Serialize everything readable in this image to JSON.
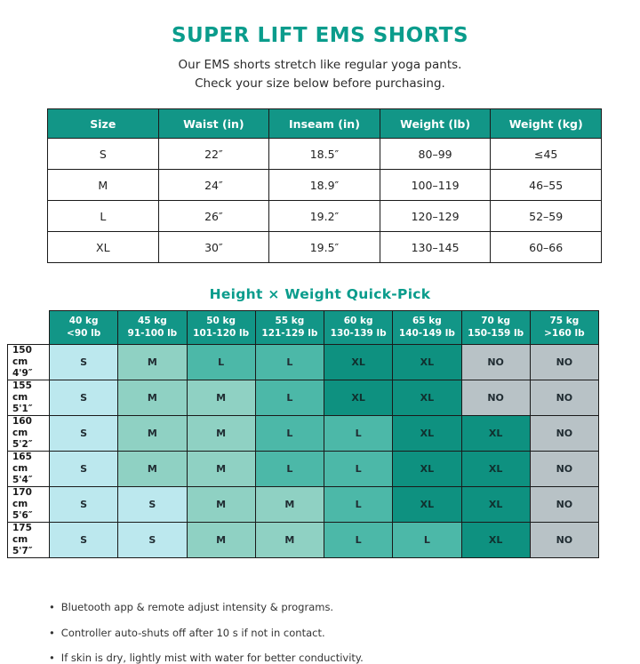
{
  "title": "SUPER LIFT EMS SHORTS",
  "subtitle": {
    "line1": "Our EMS shorts stretch like regular yoga pants.",
    "line2": "Check your size below before purchasing."
  },
  "size_table": {
    "headers": [
      "Size",
      "Waist (in)",
      "Inseam (in)",
      "Weight (lb)",
      "Weight (kg)"
    ],
    "rows": [
      [
        "S",
        "22″",
        "18.5″",
        "80–99",
        "≤45"
      ],
      [
        "M",
        "24″",
        "18.9″",
        "100–119",
        "46–55"
      ],
      [
        "L",
        "26″",
        "19.2″",
        "120–129",
        "52–59"
      ],
      [
        "XL",
        "30″",
        "19.5″",
        "130–145",
        "60–66"
      ]
    ]
  },
  "quickpick": {
    "heading": "Height × Weight Quick-Pick",
    "col_headers": [
      {
        "kg": "40 kg",
        "lb": "<90 lb"
      },
      {
        "kg": "45 kg",
        "lb": "91-100 lb"
      },
      {
        "kg": "50 kg",
        "lb": "101-120 lb"
      },
      {
        "kg": "55 kg",
        "lb": "121-129 lb"
      },
      {
        "kg": "60 kg",
        "lb": "130-139 lb"
      },
      {
        "kg": "65 kg",
        "lb": "140-149 lb"
      },
      {
        "kg": "70 kg",
        "lb": "150-159 lb"
      },
      {
        "kg": "75 kg",
        "lb": ">160 lb"
      }
    ],
    "row_headers": [
      {
        "cm": "150 cm",
        "ft": "4'9″"
      },
      {
        "cm": "155 cm",
        "ft": "5'1″"
      },
      {
        "cm": "160 cm",
        "ft": "5'2″"
      },
      {
        "cm": "165 cm",
        "ft": "5'4″"
      },
      {
        "cm": "170 cm",
        "ft": "5'6″"
      },
      {
        "cm": "175 cm",
        "ft": "5'7″"
      }
    ],
    "cells": [
      [
        "S",
        "M",
        "L",
        "L",
        "XL",
        "XL",
        "NO",
        "NO"
      ],
      [
        "S",
        "M",
        "M",
        "L",
        "XL",
        "XL",
        "NO",
        "NO"
      ],
      [
        "S",
        "M",
        "M",
        "L",
        "L",
        "XL",
        "XL",
        "NO"
      ],
      [
        "S",
        "M",
        "M",
        "L",
        "L",
        "XL",
        "XL",
        "NO"
      ],
      [
        "S",
        "S",
        "M",
        "M",
        "L",
        "XL",
        "XL",
        "NO"
      ],
      [
        "S",
        "S",
        "M",
        "M",
        "L",
        "L",
        "XL",
        "NO"
      ]
    ]
  },
  "notes": [
    "Bluetooth app & remote adjust intensity & programs.",
    "Controller auto-shuts off after 10 s if not in contact.",
    "If skin is dry, lightly mist with water for better conductivity."
  ],
  "colors": {
    "accent": "#0A9C8C",
    "table_header_bg": "#129687",
    "cell_S": "#BCE8EE",
    "cell_M": "#8FD1C3",
    "cell_L": "#4CB8A8",
    "cell_XL": "#0E9180",
    "cell_NO": "#B8C2C6",
    "cell_XL_text": "#10302e"
  }
}
